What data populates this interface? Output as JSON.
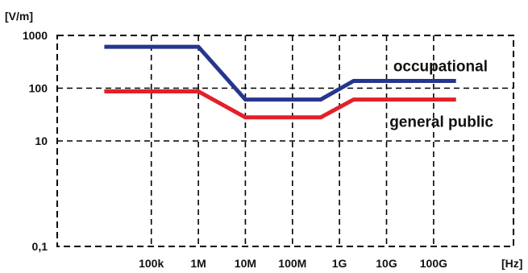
{
  "chart_data": {
    "type": "line",
    "title": "",
    "ylabel": "[V/m]",
    "xlabel": "[Hz]",
    "x_scale": "log",
    "y_scale": "log",
    "xlim": [
      1000,
      5000000000000
    ],
    "ylim": [
      0.1,
      1000
    ],
    "grid": true,
    "x_ticks": [
      {
        "value": 100000,
        "label": "100k"
      },
      {
        "value": 1000000,
        "label": "1M"
      },
      {
        "value": 10000000,
        "label": "10M"
      },
      {
        "value": 100000000,
        "label": "100M"
      },
      {
        "value": 1000000000,
        "label": "1G"
      },
      {
        "value": 10000000000,
        "label": "10G"
      },
      {
        "value": 100000000000,
        "label": "100G"
      }
    ],
    "y_ticks": [
      {
        "value": 1000,
        "label": "1000"
      },
      {
        "value": 100,
        "label": "100"
      },
      {
        "value": 10,
        "label": "10"
      },
      {
        "value": 0.1,
        "label": "0,1"
      }
    ],
    "series": [
      {
        "name": "occupational",
        "color": "#26368f",
        "points": [
          [
            10000,
            610
          ],
          [
            1000000,
            610
          ],
          [
            10000000,
            61
          ],
          [
            400000000,
            61
          ],
          [
            2000000000,
            137
          ],
          [
            300000000000,
            137
          ]
        ]
      },
      {
        "name": "general public",
        "color": "#e3202a",
        "points": [
          [
            10000,
            87
          ],
          [
            1000000,
            87
          ],
          [
            10000000,
            28
          ],
          [
            400000000,
            28
          ],
          [
            2000000000,
            61
          ],
          [
            300000000000,
            61
          ]
        ]
      }
    ]
  }
}
